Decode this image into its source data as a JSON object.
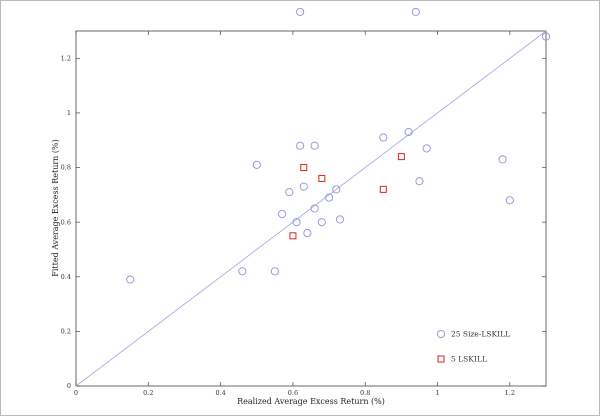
{
  "figure": {
    "background": "#ffffff",
    "border_color": "#b9b9b9",
    "frame_color": "#444444"
  },
  "chart_data": {
    "type": "scatter",
    "title": "",
    "xlabel": "Realized Average Excess Return (%)",
    "ylabel": "Fitted Average Excess Return (%)",
    "xlim": [
      0,
      1.3
    ],
    "ylim": [
      0,
      1.3
    ],
    "grid": false,
    "xticks": {
      "values": [
        0,
        0.2,
        0.4,
        0.6,
        0.8,
        1.0,
        1.2
      ],
      "labels": [
        "0",
        "0.2",
        "0.4",
        "0.6",
        "0.8",
        "1",
        "1.2"
      ]
    },
    "yticks": {
      "values": [
        0,
        0.2,
        0.4,
        0.6,
        0.8,
        1.0,
        1.2
      ],
      "labels": [
        "0",
        "0.2",
        "0.4",
        "0.6",
        "0.8",
        "1",
        "1.2"
      ]
    },
    "reference_line": {
      "name": "45-degree identity line",
      "from": [
        0,
        0
      ],
      "to": [
        1.3,
        1.3
      ],
      "color": "#9fa3e6"
    },
    "legend_position": "lower right",
    "series": [
      {
        "name": "25 Size-LSKILL",
        "marker": "circle",
        "color": "#8a92d4",
        "points": [
          [
            0.15,
            0.39
          ],
          [
            0.46,
            0.42
          ],
          [
            0.55,
            0.42
          ],
          [
            0.5,
            0.81
          ],
          [
            0.57,
            0.63
          ],
          [
            0.59,
            0.71
          ],
          [
            0.62,
            0.88
          ],
          [
            0.66,
            0.88
          ],
          [
            0.63,
            0.73
          ],
          [
            0.61,
            0.6
          ],
          [
            0.64,
            0.56
          ],
          [
            0.66,
            0.65
          ],
          [
            0.68,
            0.6
          ],
          [
            0.7,
            0.69
          ],
          [
            0.72,
            0.72
          ],
          [
            0.73,
            0.61
          ],
          [
            0.85,
            0.91
          ],
          [
            0.92,
            0.93
          ],
          [
            0.95,
            0.75
          ],
          [
            0.97,
            0.87
          ],
          [
            1.18,
            0.83
          ],
          [
            1.2,
            0.68
          ],
          [
            0.62,
            1.37
          ],
          [
            0.94,
            1.37
          ],
          [
            1.3,
            1.28
          ]
        ]
      },
      {
        "name": "5 LSKILL",
        "marker": "square",
        "color": "#dd2222",
        "points": [
          [
            0.6,
            0.55
          ],
          [
            0.63,
            0.8
          ],
          [
            0.68,
            0.76
          ],
          [
            0.85,
            0.72
          ],
          [
            0.9,
            0.84
          ]
        ]
      }
    ]
  }
}
